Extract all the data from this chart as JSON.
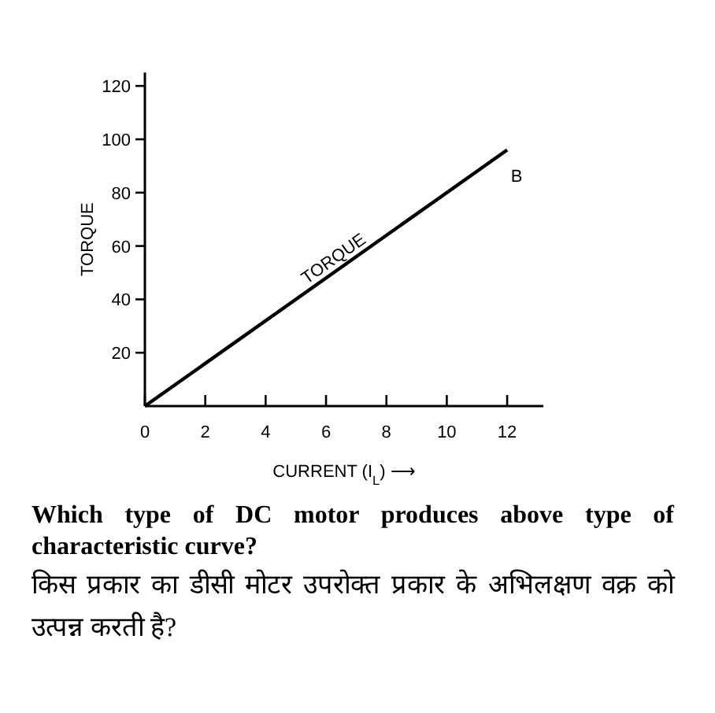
{
  "chart_data": {
    "type": "line",
    "xlabel": "CURRENT (I$_{L}$) ⟶",
    "ylabel": "TORQUE",
    "series": [
      {
        "x": [
          0,
          12
        ],
        "values": [
          0,
          96
        ],
        "color": "#000000"
      }
    ],
    "xlim": [
      0,
      13.2
    ],
    "ylim": [
      0,
      125
    ],
    "xticks": [
      0,
      2,
      4,
      6,
      8,
      10,
      12
    ],
    "yticks": [
      20,
      40,
      60,
      80,
      100,
      120
    ],
    "grid": false,
    "marker": "none",
    "line_style": "solid",
    "annotations": [
      {
        "text": "TORQUE",
        "x": 6.2,
        "y": 50
      },
      {
        "text": "B",
        "x": 12,
        "y": 96
      },
      "Which type of DC motor produces above type of characteristic curve?",
      "किस प्रकार का डीसी मोटर उपरोक्त प्रकार के अभिलक्षण वक्र को उत्पन्न करती है?"
    ]
  }
}
